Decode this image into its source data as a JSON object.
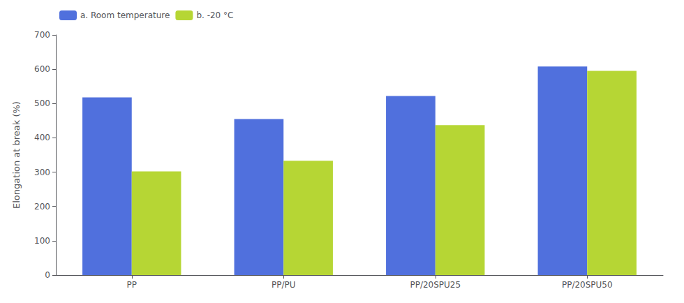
{
  "chart_data": {
    "type": "bar",
    "ylabel": "Elongation at break (%)",
    "categories": [
      "PP",
      "PP/PU",
      "PP/20SPU25",
      "PP/20SPU50"
    ],
    "series": [
      {
        "name": "a. Room temperature",
        "values": [
          518,
          455,
          522,
          608
        ]
      },
      {
        "name": "b. -20 °C",
        "values": [
          302,
          333,
          437,
          595
        ]
      }
    ],
    "ylim": [
      0,
      700
    ],
    "yticks": [
      0,
      100,
      200,
      300,
      400,
      500,
      600,
      700
    ],
    "grid": false,
    "legend": "upper left"
  }
}
